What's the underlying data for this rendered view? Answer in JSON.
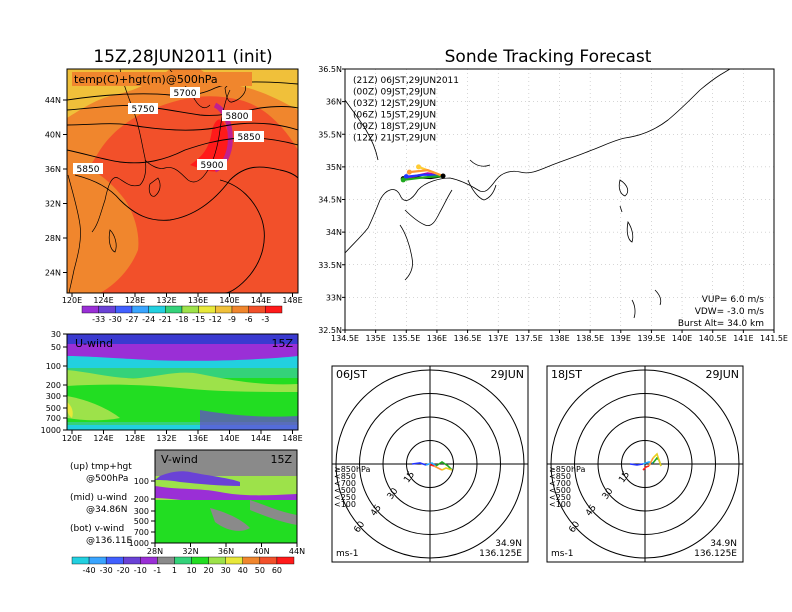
{
  "main_map": {
    "title": "15Z,28JUN2011 (init)",
    "legend_label": "temp(C)+hgt(m)@500hPa",
    "contour_labels": [
      "5700",
      "5750",
      "5800",
      "5850",
      "5900",
      "5850"
    ],
    "xticks": [
      "120E",
      "124E",
      "128E",
      "132E",
      "136E",
      "140E",
      "144E",
      "148E"
    ],
    "yticks": [
      "44N",
      "40N",
      "36N",
      "32N",
      "28N",
      "24N"
    ],
    "colorbar": [
      "-33",
      "-30",
      "-27",
      "-24",
      "-21",
      "-18",
      "-15",
      "-12",
      "-9",
      "-6",
      "-3"
    ],
    "colors": [
      "#9a2fd6",
      "#6a42d6",
      "#4160ff",
      "#3aa5ff",
      "#22d0e0",
      "#34d27a",
      "#9de24a",
      "#e8e83a",
      "#f0c03a",
      "#f0862d",
      "#f2502a",
      "#ff1a1a"
    ]
  },
  "uwind": {
    "title": "U-wind",
    "time": "15Z",
    "yticks": [
      "30",
      "50",
      "100",
      "200",
      "300",
      "500",
      "700",
      "1000"
    ],
    "xticks": [
      "120E",
      "124E",
      "128E",
      "132E",
      "136E",
      "140E",
      "144E",
      "148E"
    ]
  },
  "vwind": {
    "title": "V-wind",
    "time": "15Z",
    "yticks": [
      "100",
      "200",
      "300",
      "500",
      "700",
      "1000"
    ],
    "xticks": [
      "28N",
      "32N",
      "36N",
      "40N",
      "44N"
    ],
    "colorbar": [
      "-40",
      "-30",
      "-20",
      "-10",
      "-1",
      "1",
      "10",
      "20",
      "30",
      "40",
      "50",
      "60"
    ]
  },
  "notes": [
    {
      "a": "(up) tmp+hgt",
      "b": "@500hPa"
    },
    {
      "a": "(mid) u-wind",
      "b": "@34.86N"
    },
    {
      "a": "(bot) v-wind",
      "b": "@136.11E"
    }
  ],
  "tracking": {
    "title": "Sonde Tracking Forecast",
    "xticks": [
      "134.5E",
      "135E",
      "135.5E",
      "136E",
      "136.5E",
      "137E",
      "137.5E",
      "138E",
      "138.5E",
      "139E",
      "139.5E",
      "140E",
      "140.5E",
      "141E",
      "141.5E"
    ],
    "yticks": [
      "36.5N",
      "36N",
      "35.5N",
      "35N",
      "34.5N",
      "34N",
      "33.5N",
      "33N",
      "32.5N"
    ],
    "launches": [
      {
        "label": "(21Z)  06JST,29JUN2011",
        "color": "#000000"
      },
      {
        "label": "(00Z)  09JST,29JUN",
        "color": "#b000b0"
      },
      {
        "label": "(03Z)  12JST,29JUN",
        "color": "#2233ff"
      },
      {
        "label": "(06Z)  15JST,29JUN",
        "color": "#1fa81f"
      },
      {
        "label": "(09Z)  18JST,29JUN",
        "color": "#ffcc33"
      },
      {
        "label": "(12Z)  21JST,29JUN",
        "color": "#ff9933"
      }
    ],
    "params": [
      "VUP=  6.0  m/s",
      "VDW= -3.0  m/s",
      "Burst Alt=  34.0  km"
    ]
  },
  "hodographs": [
    {
      "time": "06JST",
      "date": "29JUN",
      "rings": [
        "15",
        "30",
        "45",
        "60"
      ],
      "unit": "ms-1",
      "lat": "34.9N",
      "lon": "136.125E"
    },
    {
      "time": "18JST",
      "date": "29JUN",
      "rings": [
        "15",
        "30",
        "45",
        "60"
      ],
      "unit": "ms-1",
      "lat": "34.9N",
      "lon": "136.125E"
    }
  ],
  "hodo_legend": [
    {
      "label": "≥850hPa",
      "color": "#ff2222"
    },
    {
      "label": "<850",
      "color": "#ff9933"
    },
    {
      "label": "<700",
      "color": "#e8d020"
    },
    {
      "label": "<500",
      "color": "#1fa81f"
    },
    {
      "label": "<250",
      "color": "#22aaff"
    },
    {
      "label": "<100",
      "color": "#2233ff"
    }
  ],
  "chart_data": [
    {
      "type": "heatmap",
      "title": "15Z,28JUN2011 (init)",
      "variable": "temp(C)+hgt(m)@500hPa",
      "x_range": [
        "120E",
        "148E"
      ],
      "y_range": [
        "22N",
        "47N"
      ],
      "color_levels": [
        -33,
        -30,
        -27,
        -24,
        -21,
        -18,
        -15,
        -12,
        -9,
        -6,
        -3
      ],
      "contours": [
        5700,
        5750,
        5800,
        5850,
        5900
      ]
    },
    {
      "type": "heatmap",
      "title": "U-wind",
      "y_axis_levels_hPa": [
        30,
        50,
        100,
        200,
        300,
        500,
        700,
        1000
      ],
      "x_range": [
        "120E",
        "148E"
      ]
    },
    {
      "type": "heatmap",
      "title": "V-wind",
      "y_axis_levels_hPa": [
        100,
        200,
        300,
        500,
        700,
        1000
      ],
      "x_range": [
        "28N",
        "44N"
      ],
      "color_levels": [
        -40,
        -30,
        -20,
        -10,
        -1,
        1,
        10,
        20,
        30,
        40,
        50,
        60
      ]
    },
    {
      "type": "line",
      "title": "Sonde Tracking Forecast",
      "x_range": [
        134.5,
        141.5
      ],
      "y_range": [
        32.5,
        36.5
      ],
      "series": [
        {
          "name": "(21Z)",
          "x": [
            136.1,
            135.9,
            135.65,
            135.45
          ],
          "y": [
            34.86,
            34.83,
            34.84,
            34.82
          ]
        },
        {
          "name": "(00Z)",
          "x": [
            136.1,
            135.85,
            135.5
          ],
          "y": [
            34.86,
            34.9,
            34.83
          ]
        },
        {
          "name": "(03Z)",
          "x": [
            136.1,
            135.8,
            135.5
          ],
          "y": [
            34.86,
            34.88,
            34.85
          ]
        },
        {
          "name": "(06Z)",
          "x": [
            136.1,
            135.8,
            135.45
          ],
          "y": [
            34.86,
            34.84,
            34.8
          ]
        },
        {
          "name": "(09Z)",
          "x": [
            136.1,
            135.9,
            135.7
          ],
          "y": [
            34.86,
            34.93,
            35.0
          ]
        },
        {
          "name": "(12Z)",
          "x": [
            136.1,
            135.85,
            135.55
          ],
          "y": [
            34.86,
            34.95,
            34.92
          ]
        }
      ]
    }
  ]
}
